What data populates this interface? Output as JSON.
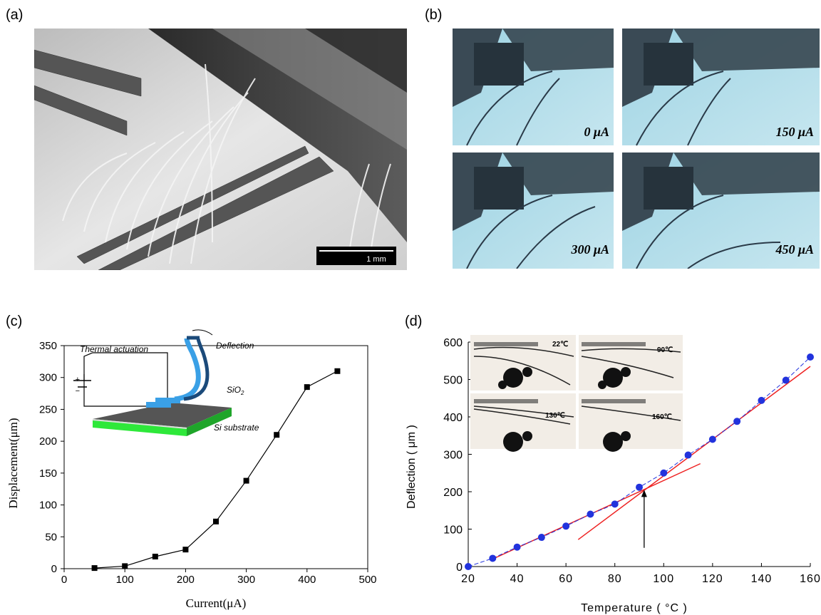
{
  "panels": {
    "a": {
      "label": "(a)",
      "scalebar": "1 mm"
    },
    "b": {
      "label": "(b)",
      "frames": [
        "0 μA",
        "150 μA",
        "300 μA",
        "450 μA"
      ]
    },
    "c": {
      "label": "(c)",
      "inset": {
        "thermal": "Thermal actuation",
        "deflection": "Deflection",
        "sio2": "SiO",
        "sio2_sub": "2",
        "si": "Si substrate",
        "plus": "+",
        "minus": "−"
      }
    },
    "d": {
      "label": "(d)",
      "inset_temps": [
        "22℃",
        "90℃",
        "130℃",
        "160℃"
      ]
    }
  },
  "chart_data": [
    {
      "type": "line",
      "xlabel": "Current(μA)",
      "ylabel": "Displacement(μm)",
      "xlim": [
        0,
        500
      ],
      "ylim": [
        0,
        350
      ],
      "xticks": [
        0,
        100,
        200,
        300,
        400,
        500
      ],
      "yticks": [
        0,
        50,
        100,
        150,
        200,
        250,
        300,
        350
      ],
      "x": [
        50,
        100,
        150,
        200,
        250,
        300,
        350,
        400,
        450
      ],
      "y": [
        1,
        4,
        19,
        30,
        74,
        138,
        210,
        285,
        310
      ],
      "marker": "square",
      "color": "#000000"
    },
    {
      "type": "scatter",
      "xlabel": "Temperature ( °C )",
      "ylabel": "Deflection ( μm )",
      "xlim": [
        20,
        160
      ],
      "ylim": [
        0,
        600
      ],
      "xticks": [
        20,
        40,
        60,
        80,
        100,
        120,
        140,
        160
      ],
      "yticks": [
        0,
        100,
        200,
        300,
        400,
        500,
        600
      ],
      "x": [
        20,
        30,
        40,
        50,
        60,
        70,
        80,
        90,
        100,
        110,
        120,
        130,
        140,
        150,
        160
      ],
      "y": [
        0,
        22,
        52,
        78,
        108,
        140,
        167,
        212,
        250,
        298,
        340,
        388,
        444,
        498,
        560
      ],
      "marker_color": "#2233dd",
      "fit_color": "#ee2222",
      "fit_lines": [
        {
          "x": [
            30,
            115
          ],
          "y": [
            20,
            275
          ]
        },
        {
          "x": [
            65,
            160
          ],
          "y": [
            72,
            535
          ]
        }
      ],
      "arrow": {
        "x": 92,
        "y_from": 50,
        "y_to": 205
      }
    }
  ]
}
